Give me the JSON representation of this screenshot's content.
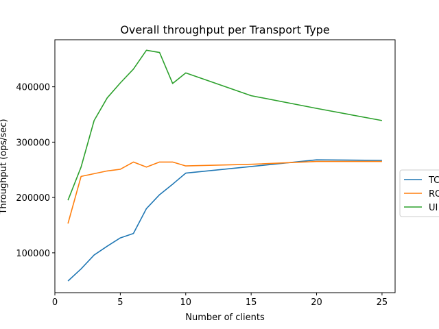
{
  "chart_data": {
    "type": "line",
    "title": "Overall throughput per Transport Type",
    "xlabel": "Number of clients",
    "ylabel": "Throughput (ops/sec)",
    "xlim": [
      0,
      26
    ],
    "ylim": [
      28000,
      485000
    ],
    "xticks": [
      0,
      5,
      10,
      15,
      20,
      25
    ],
    "yticks": [
      100000,
      200000,
      300000,
      400000
    ],
    "grid": false,
    "legend_position": "right, outside plot area (partially clipped)",
    "series": [
      {
        "name": "TC",
        "color": "#1f77b4",
        "x": [
          1,
          2,
          3,
          4,
          5,
          6,
          7,
          8,
          9,
          10,
          15,
          20,
          25
        ],
        "y": [
          49000,
          71000,
          96000,
          112000,
          127000,
          135000,
          180000,
          205000,
          224000,
          244000,
          256000,
          268000,
          267000
        ]
      },
      {
        "name": "RO",
        "color": "#ff7f0e",
        "x": [
          1,
          2,
          3,
          4,
          5,
          6,
          7,
          8,
          9,
          10,
          15,
          20,
          25
        ],
        "y": [
          153000,
          238000,
          243000,
          248000,
          251000,
          264000,
          255000,
          264000,
          264000,
          257000,
          260000,
          265000,
          265000
        ]
      },
      {
        "name": "UI",
        "color": "#2ca02c",
        "x": [
          1,
          2,
          3,
          4,
          5,
          6,
          7,
          8,
          9,
          10,
          15,
          20,
          25
        ],
        "y": [
          195000,
          255000,
          339000,
          380000,
          407000,
          432000,
          466000,
          462000,
          406000,
          425000,
          384000,
          361000,
          339000
        ]
      }
    ]
  }
}
